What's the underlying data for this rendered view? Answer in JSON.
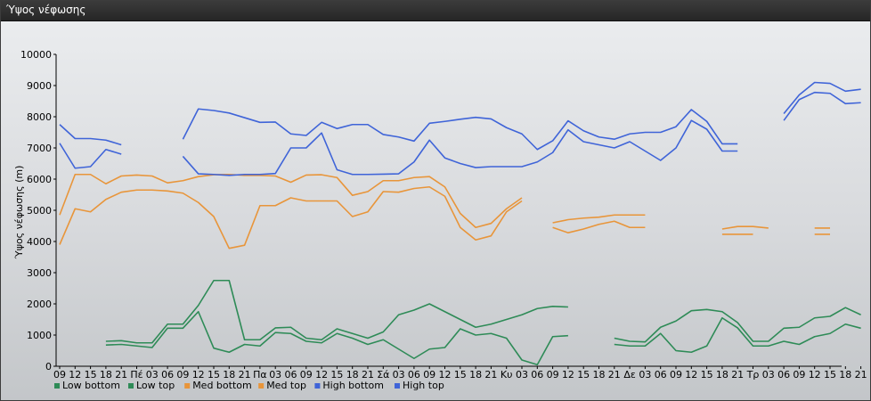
{
  "window": {
    "title": "Ύψος νέφωσης"
  },
  "chart_data": {
    "type": "line",
    "title": "",
    "xlabel": "",
    "ylabel": "Ύψος νέφωσης (m)",
    "ylim": [
      0,
      10000
    ],
    "yticks": [
      0,
      1000,
      2000,
      3000,
      4000,
      5000,
      6000,
      7000,
      8000,
      9000,
      10000
    ],
    "grid": false,
    "legend_position": "bottom-left",
    "categories": [
      "09",
      "12",
      "15",
      "18",
      "21",
      "Πέ",
      "03",
      "06",
      "09",
      "12",
      "15",
      "18",
      "21",
      "Πα",
      "03",
      "06",
      "09",
      "12",
      "15",
      "18",
      "21",
      "Σά",
      "03",
      "06",
      "09",
      "12",
      "15",
      "18",
      "21",
      "Κυ",
      "03",
      "06",
      "09",
      "12",
      "15",
      "18",
      "21",
      "Δε",
      "03",
      "06",
      "09",
      "12",
      "15",
      "18",
      "21",
      "Τρ",
      "03",
      "06",
      "09",
      "12",
      "15",
      "18",
      "21"
    ],
    "series": [
      {
        "name": "Low bottom",
        "color": "#2e8b57",
        "values": [
          null,
          null,
          null,
          680,
          700,
          650,
          600,
          1220,
          1220,
          1750,
          580,
          450,
          700,
          650,
          1080,
          1050,
          800,
          750,
          1050,
          900,
          700,
          850,
          550,
          250,
          550,
          600,
          1200,
          1000,
          1050,
          900,
          200,
          50,
          950,
          980,
          null,
          null,
          700,
          650,
          650,
          1050,
          500,
          450,
          650,
          1550,
          1230,
          650,
          650,
          800,
          700,
          950,
          1050,
          1350,
          1220
        ]
      },
      {
        "name": "Low top",
        "color": "#2e8b57",
        "values": [
          null,
          null,
          null,
          800,
          820,
          750,
          750,
          1350,
          1350,
          1950,
          2750,
          2750,
          850,
          850,
          1230,
          1250,
          900,
          850,
          1200,
          1050,
          900,
          1100,
          1650,
          1800,
          2000,
          1750,
          1500,
          1250,
          1350,
          1500,
          1650,
          1850,
          1920,
          1900,
          null,
          null,
          900,
          800,
          780,
          1250,
          1450,
          1780,
          1820,
          1750,
          1400,
          800,
          800,
          1220,
          1250,
          1550,
          1600,
          1880,
          1650
        ]
      },
      {
        "name": "Med bottom",
        "color": "#e8953a",
        "values": [
          3900,
          5050,
          4950,
          5350,
          5580,
          5650,
          5650,
          5620,
          5550,
          5250,
          4800,
          3780,
          3880,
          5150,
          5150,
          5400,
          5300,
          5300,
          5300,
          4800,
          4950,
          5600,
          5580,
          5700,
          5750,
          5450,
          4450,
          4050,
          4180,
          4950,
          5300,
          null,
          4450,
          4280,
          4400,
          4550,
          4650,
          4450,
          4450,
          null,
          null,
          null,
          null,
          4230,
          4230,
          4230,
          null,
          null,
          null,
          4230,
          4230,
          null,
          null
        ]
      },
      {
        "name": "Med top",
        "color": "#e8953a",
        "values": [
          4850,
          6150,
          6150,
          5850,
          6100,
          6130,
          6100,
          5880,
          5950,
          6080,
          6140,
          6150,
          6120,
          6120,
          6100,
          5900,
          6130,
          6140,
          6050,
          5480,
          5600,
          5950,
          5950,
          6050,
          6080,
          5750,
          4900,
          4450,
          4580,
          5050,
          5400,
          null,
          4600,
          4700,
          4750,
          4780,
          4850,
          4850,
          4850,
          null,
          null,
          null,
          null,
          4400,
          4480,
          4480,
          4430,
          null,
          null,
          4430,
          4430,
          null,
          null
        ]
      },
      {
        "name": "High bottom",
        "color": "#3f64d8",
        "values": [
          7150,
          6350,
          6400,
          6950,
          6800,
          null,
          null,
          null,
          6730,
          6170,
          6150,
          6120,
          6150,
          6150,
          6180,
          7000,
          7000,
          7480,
          6300,
          6150,
          6150,
          6160,
          6170,
          6550,
          7250,
          6680,
          6500,
          6370,
          6400,
          6400,
          6400,
          6550,
          6850,
          7580,
          7200,
          7100,
          7000,
          7200,
          6900,
          6600,
          7000,
          7880,
          7600,
          6900,
          6900,
          null,
          null,
          7880,
          8550,
          8780,
          8750,
          8420,
          8450
        ]
      },
      {
        "name": "High top",
        "color": "#3f64d8",
        "values": [
          7750,
          7300,
          7300,
          7250,
          7100,
          null,
          null,
          null,
          7280,
          8250,
          8200,
          8120,
          7970,
          7820,
          7830,
          7450,
          7400,
          7820,
          7620,
          7750,
          7750,
          7430,
          7350,
          7220,
          7790,
          7850,
          7920,
          7980,
          7930,
          7650,
          7450,
          6950,
          7230,
          7870,
          7550,
          7350,
          7280,
          7450,
          7500,
          7500,
          7680,
          8230,
          7850,
          7130,
          7130,
          null,
          null,
          8100,
          8700,
          9100,
          9070,
          8820,
          8880
        ]
      }
    ]
  }
}
